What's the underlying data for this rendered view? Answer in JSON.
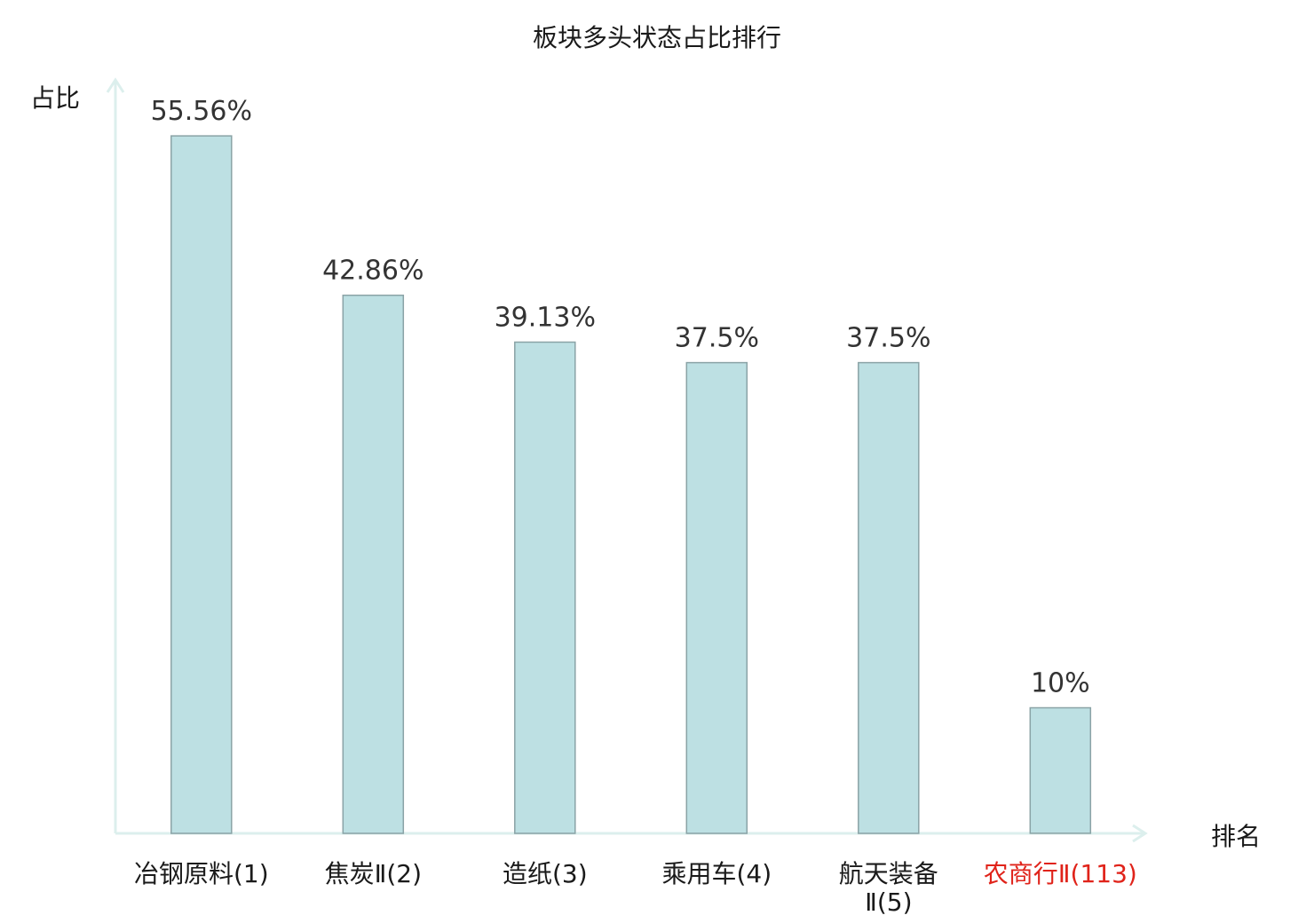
{
  "chart_data": {
    "type": "bar",
    "title": "板块多头状态占比排行",
    "xlabel": "排名",
    "ylabel": "占比",
    "ylim": [
      0,
      60
    ],
    "grid": false,
    "legend": "none",
    "categories": [
      "冶钢原料(1)",
      "焦炭Ⅱ(2)",
      "造纸(3)",
      "乘用车(4)",
      "航天装备Ⅱ(5)",
      "农商行Ⅱ(113)"
    ],
    "category_lines": [
      [
        "冶钢原料(1)"
      ],
      [
        "焦炭Ⅱ(2)"
      ],
      [
        "造纸(3)"
      ],
      [
        "乘用车(4)"
      ],
      [
        "航天装备",
        "Ⅱ(5)"
      ],
      [
        "农商行Ⅱ(113)"
      ]
    ],
    "values": [
      55.56,
      42.86,
      39.13,
      37.5,
      37.5,
      10
    ],
    "value_labels": [
      "55.56%",
      "42.86%",
      "39.13%",
      "37.5%",
      "37.5%",
      "10%"
    ],
    "highlight_index": 5
  },
  "colors": {
    "bar_fill": "#bde0e3",
    "bar_stroke": "#8aa3a6",
    "axis": "#dcefed",
    "text": "#1a1a1a",
    "value_text": "#333333",
    "highlight_text": "#e0231a"
  }
}
